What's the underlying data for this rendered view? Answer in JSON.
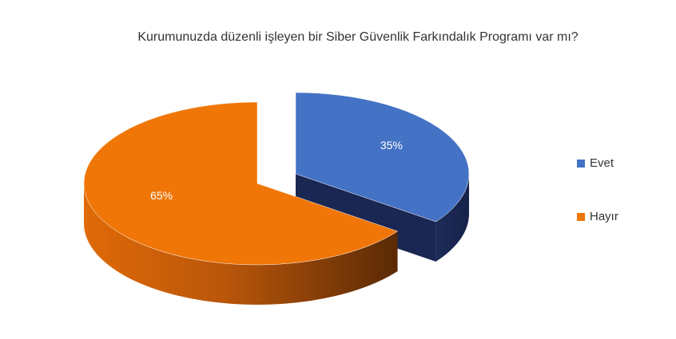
{
  "chart_data": {
    "type": "pie3d",
    "title": "Kurumunuzda düzenli işleyen bir Siber Güvenlik Farkındalık Programı var mı?",
    "categories": [
      "Evet",
      "Hayır"
    ],
    "values": [
      35,
      65
    ],
    "value_labels": [
      "35%",
      "65%"
    ],
    "colors": [
      "#4472c4",
      "#f07608"
    ],
    "legend": "right"
  }
}
